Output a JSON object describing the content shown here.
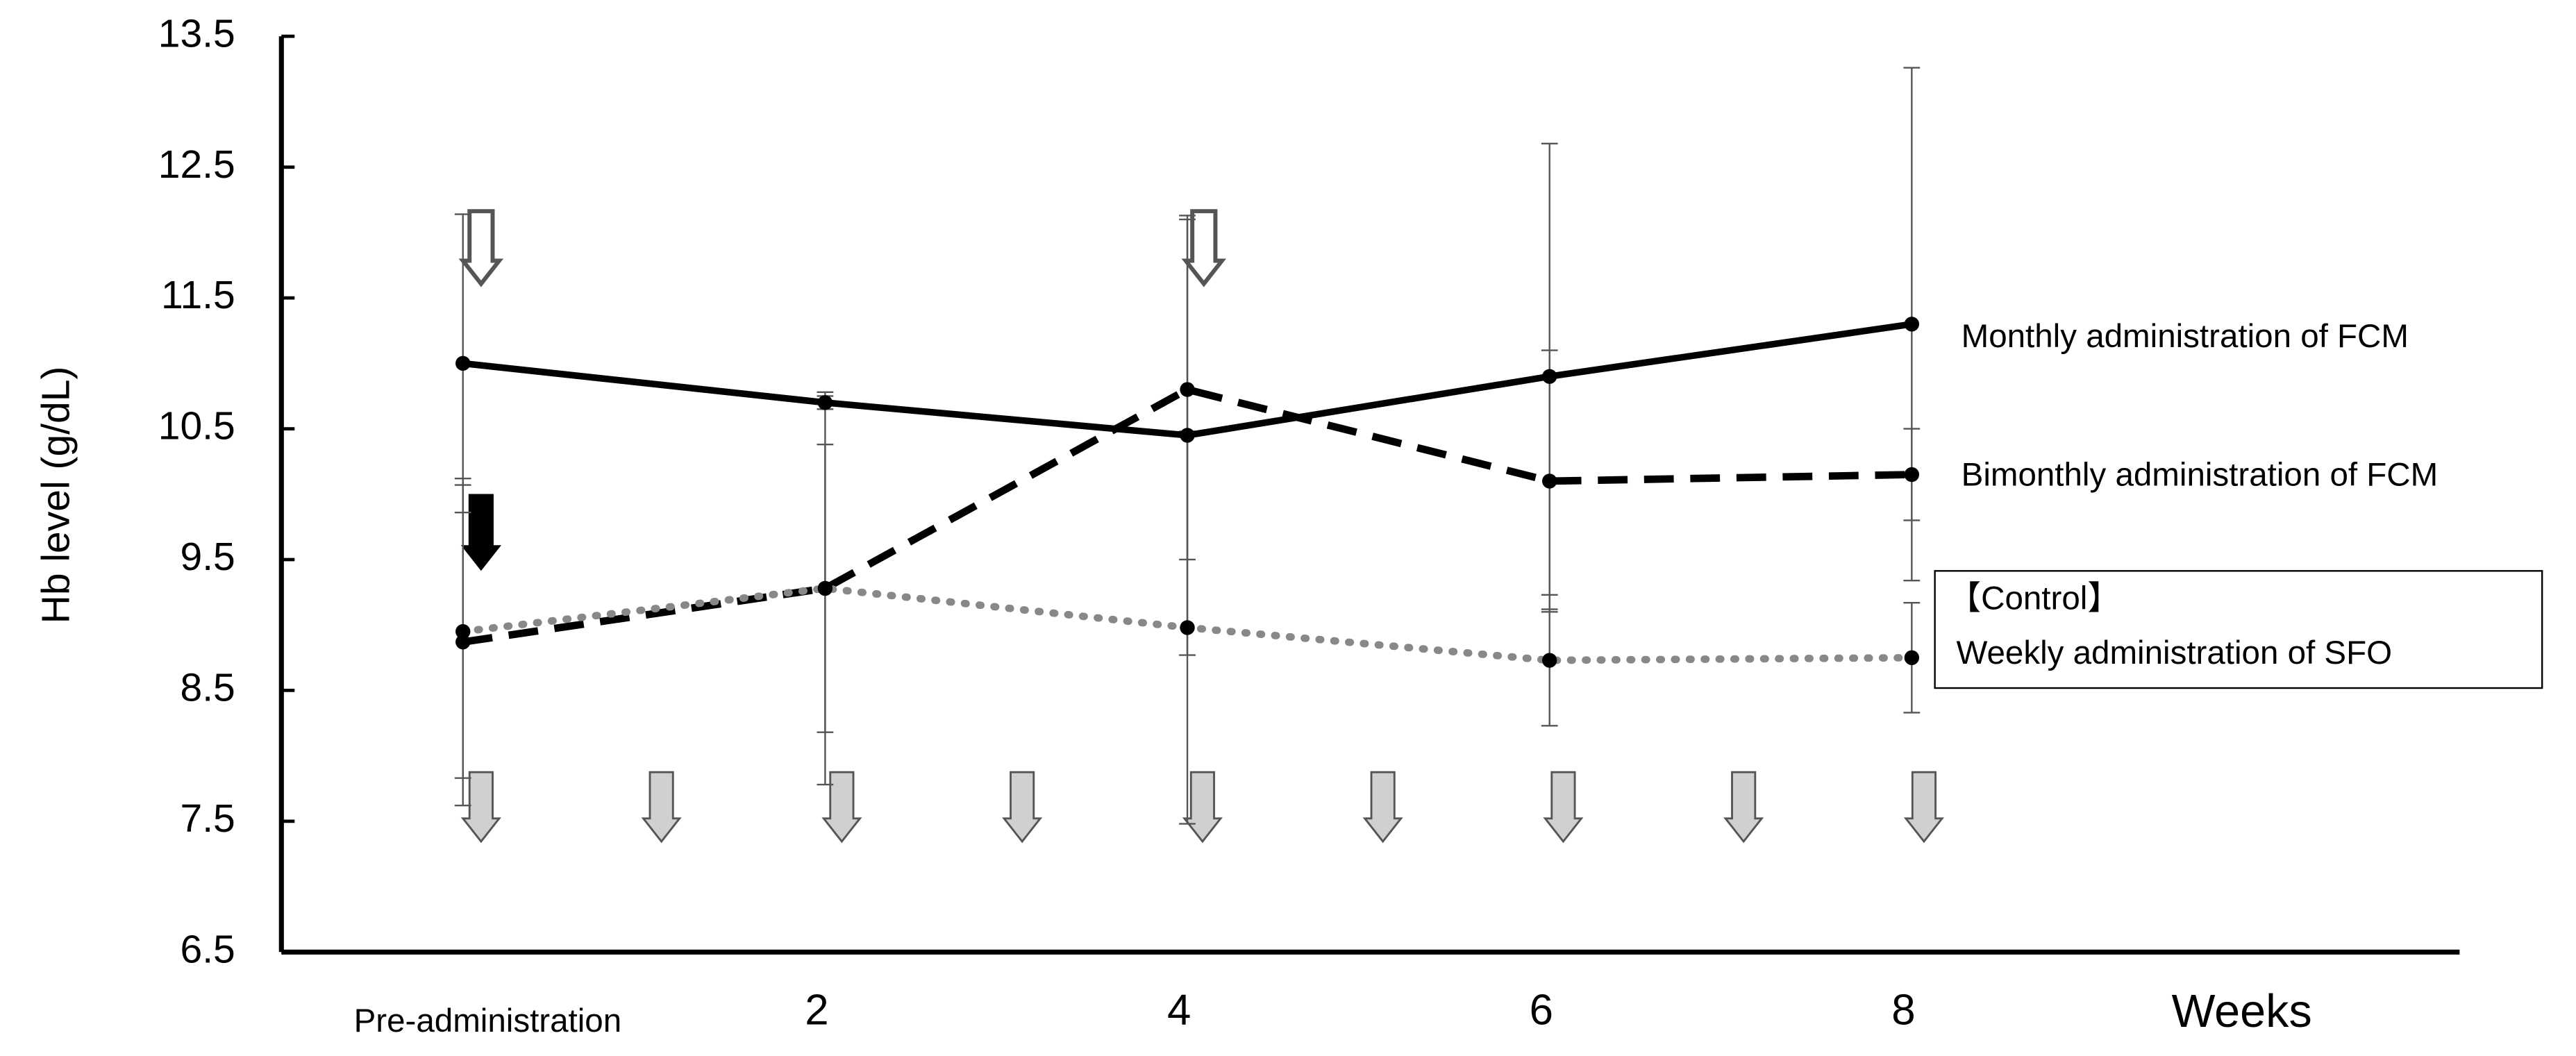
{
  "chart_data": {
    "type": "line",
    "y_label": "Hb level (g/dL)",
    "x_label": "Weeks",
    "categories": [
      "Pre-administration",
      "2",
      "4",
      "6",
      "8"
    ],
    "series": [
      {
        "name": "Monthly administration of FCM",
        "color": "#000000",
        "style": "solid",
        "values": [
          11.0,
          10.7,
          10.45,
          10.9,
          11.3
        ],
        "errors": [
          1.14,
          0.05,
          1.68,
          1.78,
          1.96
        ]
      },
      {
        "name": "Bimonthly administration of FCM",
        "color": "#000000",
        "style": "dashed",
        "values": [
          8.87,
          9.28,
          10.8,
          10.1,
          10.15
        ],
        "errors": [
          1.25,
          1.5,
          1.3,
          1.0,
          0.35
        ]
      },
      {
        "name": "Weekly administration of SFO",
        "color": "#888888",
        "style": "dotted",
        "values": [
          8.95,
          9.28,
          8.98,
          8.73,
          8.75
        ],
        "errors": [
          1.12,
          1.1,
          1.5,
          0.5,
          0.42
        ]
      }
    ],
    "control_label": "【Control】",
    "ylim": [
      6.5,
      13.5
    ],
    "yticks": [
      6.5,
      7.5,
      8.5,
      9.5,
      10.5,
      11.5,
      12.5,
      13.5
    ]
  }
}
